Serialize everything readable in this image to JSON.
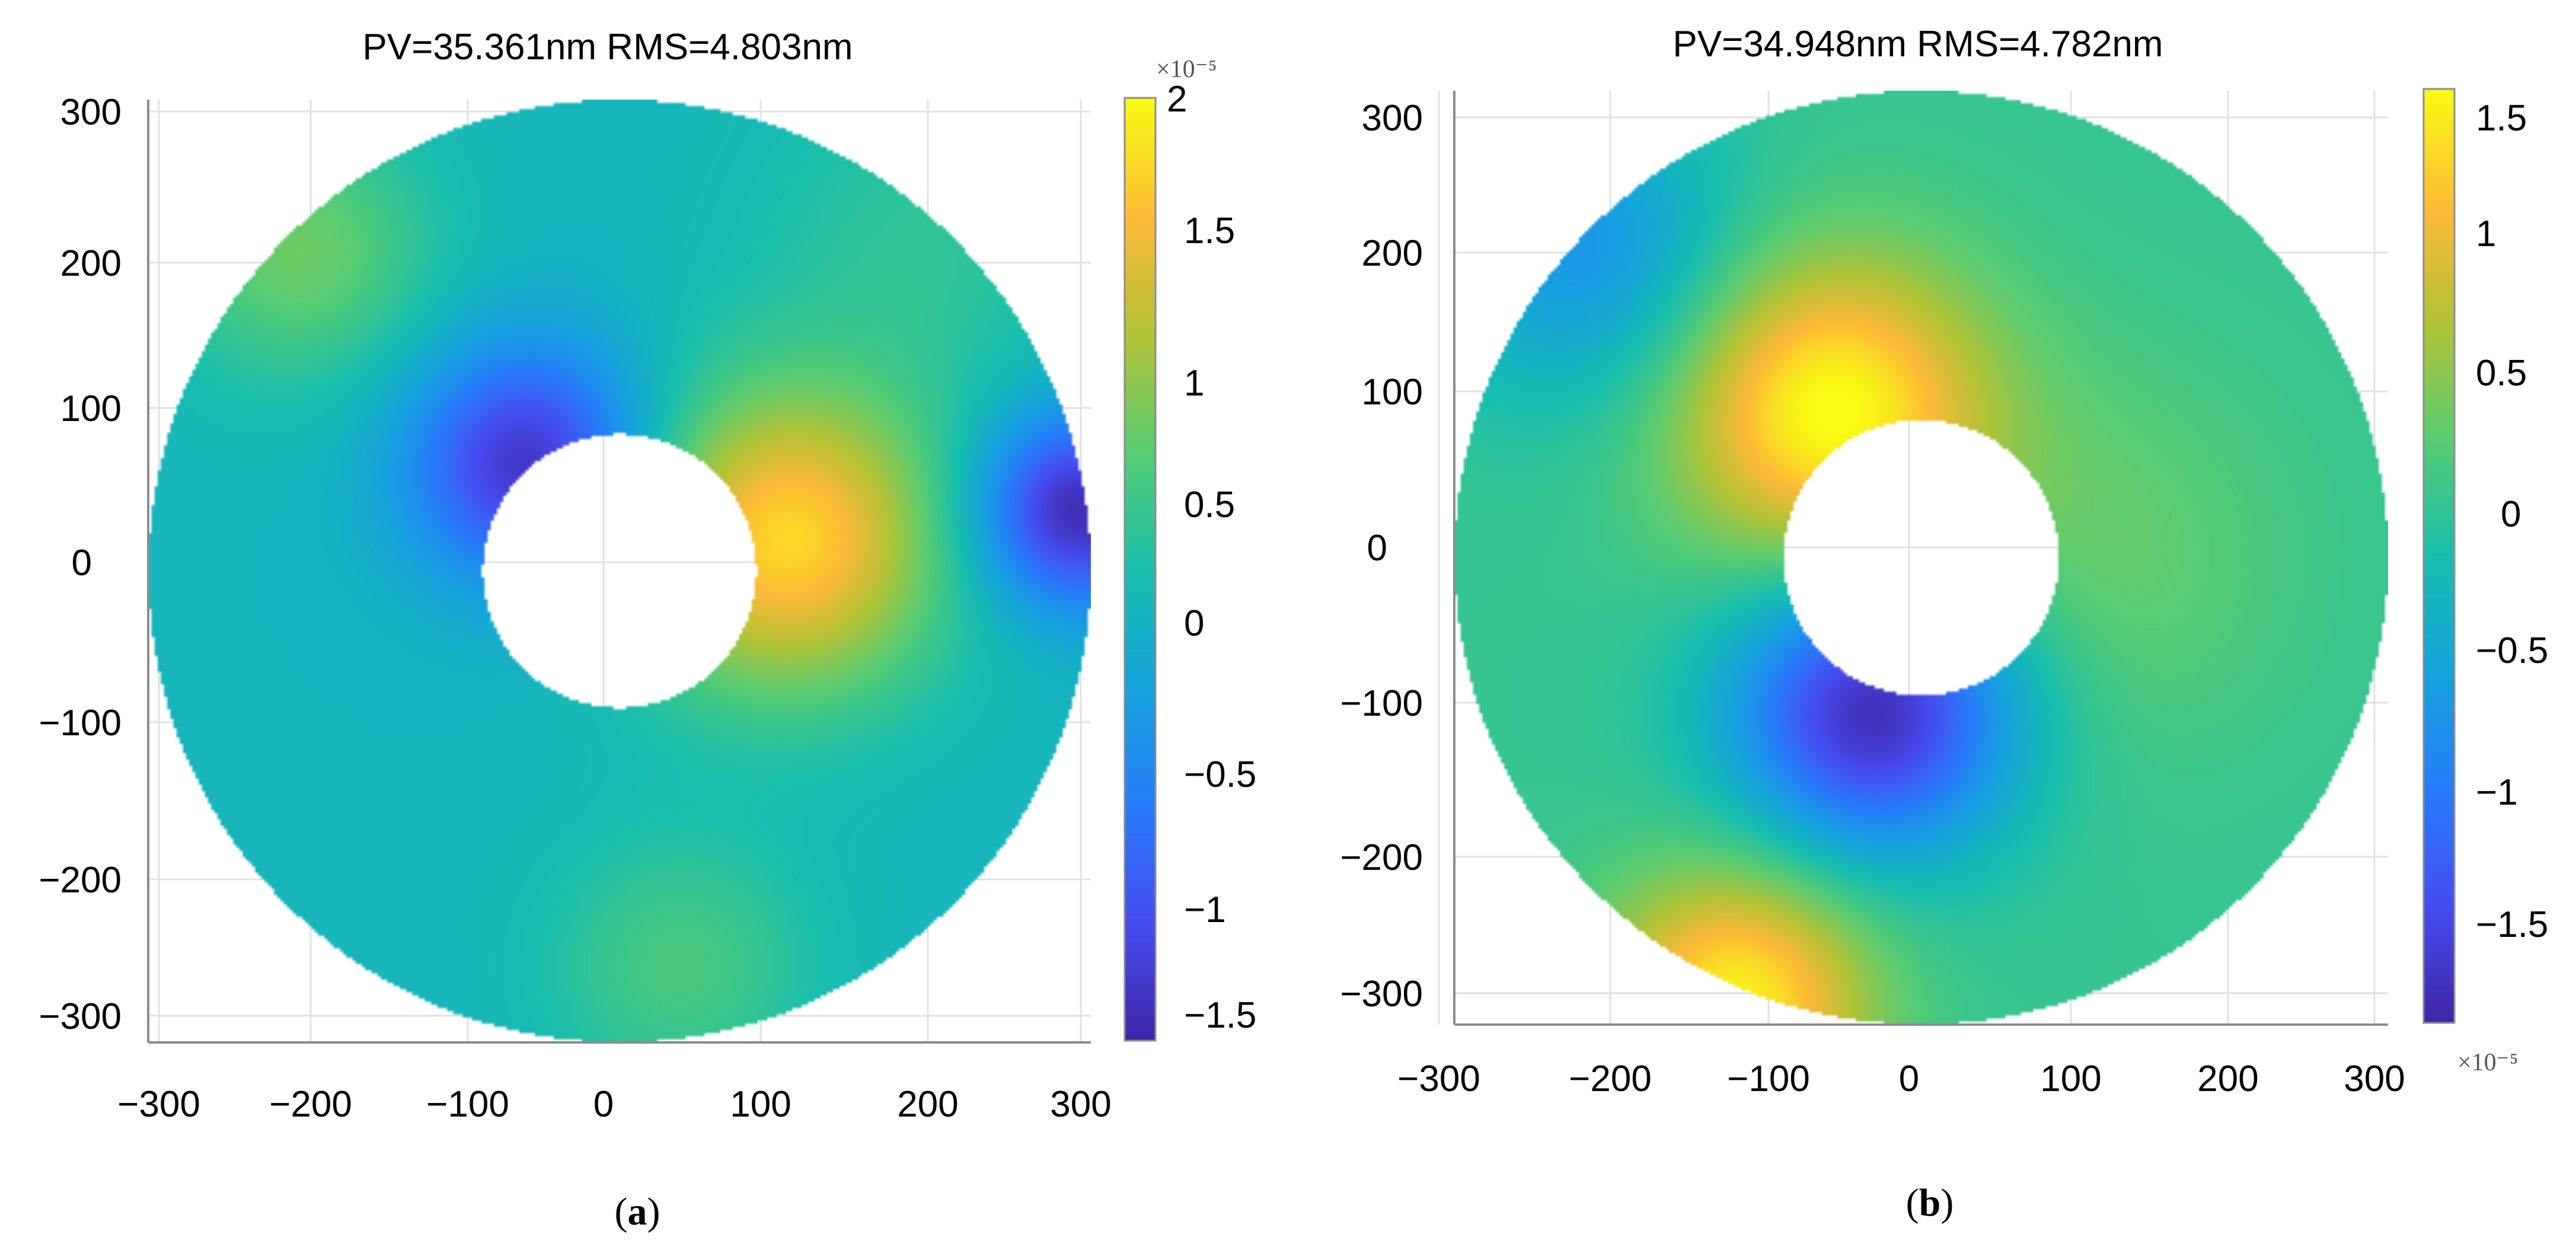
{
  "chart_data": [
    {
      "type": "heatmap",
      "panel_label": "a",
      "title": "PV=35.361nm RMS=4.803nm",
      "xlim": [
        -310,
        310
      ],
      "ylim": [
        -310,
        310
      ],
      "x_ticks": [
        "−300",
        "−200",
        "−100",
        "0",
        "100",
        "200",
        "300"
      ],
      "y_ticks": [
        "300",
        "200",
        "100",
        "0",
        "−100",
        "−200",
        "−300"
      ],
      "outer_radius": 310,
      "inner_radius": 90,
      "colorbar": {
        "min": -1.6,
        "max": 2.0,
        "ticks": [
          "2",
          "1.5",
          "1",
          "0.5",
          "0",
          "−0.5",
          "−1",
          "−1.5"
        ],
        "exponent": "×10⁻⁵",
        "exponent_position": "top"
      },
      "features": [
        {
          "x": 110,
          "y": 20,
          "value": 1.7,
          "spread": 70
        },
        {
          "x": -60,
          "y": 70,
          "value": -1.5,
          "spread": 55
        },
        {
          "x": 300,
          "y": 40,
          "value": -1.6,
          "spread": 45
        },
        {
          "x": -210,
          "y": 210,
          "value": 0.7,
          "spread": 60
        },
        {
          "x": 200,
          "y": 220,
          "value": 0.3,
          "spread": 80
        },
        {
          "x": 40,
          "y": -260,
          "value": 0.5,
          "spread": 60
        }
      ]
    },
    {
      "type": "heatmap",
      "panel_label": "b",
      "title": "PV=34.948nm RMS=4.782nm",
      "xlim": [
        -305,
        305
      ],
      "ylim": [
        -305,
        305
      ],
      "x_ticks": [
        "−300",
        "−200",
        "−100",
        "0",
        "100",
        "200",
        "300"
      ],
      "y_ticks": [
        "300",
        "200",
        "100",
        "0",
        "−100",
        "−200",
        "−300"
      ],
      "outer_radius": 305,
      "inner_radius": 90,
      "colorbar": {
        "min": -1.9,
        "max": 1.6,
        "ticks": [
          "1.5",
          "1",
          "0.5",
          "0",
          "−0.5",
          "−1",
          "−1.5"
        ],
        "exponent": "×10⁻⁵",
        "exponent_position": "bottom"
      },
      "features": [
        {
          "x": -60,
          "y": 95,
          "value": 1.6,
          "spread": 70
        },
        {
          "x": -30,
          "y": -100,
          "value": -1.9,
          "spread": 65
        },
        {
          "x": -120,
          "y": -290,
          "value": 1.5,
          "spread": 60
        },
        {
          "x": -220,
          "y": 200,
          "value": -0.8,
          "spread": 70
        },
        {
          "x": 110,
          "y": 0,
          "value": 0.3,
          "spread": 90
        }
      ]
    }
  ]
}
